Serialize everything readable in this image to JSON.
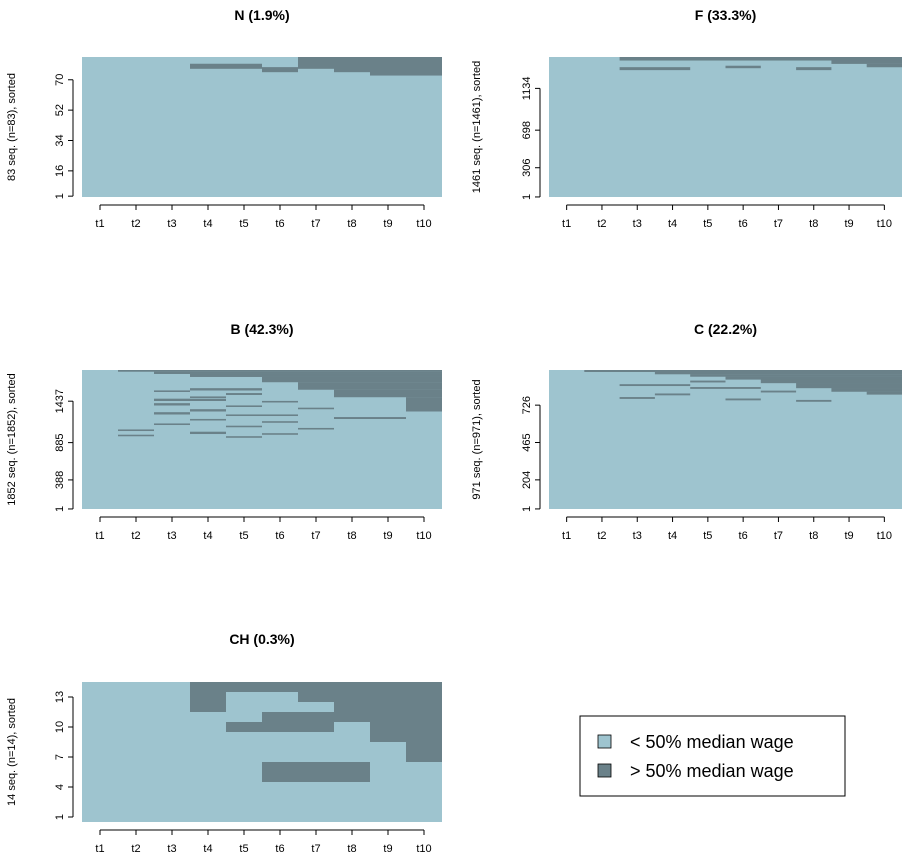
{
  "colors": {
    "below": "#9ec4cf",
    "above": "#6a8189"
  },
  "legend": {
    "items": [
      "< 50% median wage",
      "> 50% median wage"
    ]
  },
  "chart_data": [
    {
      "type": "heatmap",
      "title": "N (1.9%)",
      "ylabel": "83 seq. (n=83), sorted",
      "n": 83,
      "yticks": [
        "1",
        "16",
        "34",
        "52",
        "70"
      ],
      "ytick_values": [
        1,
        16,
        34,
        52,
        70
      ],
      "xticks": [
        "t1",
        "t2",
        "t3",
        "t4",
        "t5",
        "t6",
        "t7",
        "t8",
        "t9",
        "t10"
      ],
      "states": [
        "< 50% median wage",
        "> 50% median wage"
      ],
      "above_segments": [
        [
          79,
          83,
          7,
          10
        ],
        [
          77,
          79,
          7,
          10
        ],
        [
          75,
          77,
          8,
          10
        ],
        [
          73,
          75,
          9,
          10
        ],
        [
          81,
          83,
          10,
          10
        ],
        [
          77,
          79,
          4,
          4
        ],
        [
          77,
          79,
          5,
          5
        ],
        [
          75,
          77,
          6,
          6
        ]
      ]
    },
    {
      "type": "heatmap",
      "title": "F (33.3%)",
      "ylabel": "1461 seq. (n=1461), sorted",
      "n": 1461,
      "yticks": [
        "1",
        "306",
        "698",
        "1134"
      ],
      "ytick_values": [
        1,
        306,
        698,
        1134
      ],
      "xticks": [
        "t1",
        "t2",
        "t3",
        "t4",
        "t5",
        "t6",
        "t7",
        "t8",
        "t9",
        "t10"
      ],
      "states": [
        "< 50% median wage",
        "> 50% median wage"
      ],
      "above_segments": [
        [
          1425,
          1461,
          3,
          10
        ],
        [
          1390,
          1425,
          9,
          10
        ],
        [
          1355,
          1390,
          10,
          10
        ],
        [
          1325,
          1355,
          3,
          4
        ],
        [
          1325,
          1355,
          8,
          8
        ],
        [
          1345,
          1370,
          6,
          6
        ]
      ]
    },
    {
      "type": "heatmap",
      "title": "B (42.3%)",
      "ylabel": "1852 seq. (n=1852), sorted",
      "n": 1852,
      "yticks": [
        "1",
        "388",
        "885",
        "1437"
      ],
      "ytick_values": [
        1,
        388,
        885,
        1437
      ],
      "xticks": [
        "t1",
        "t2",
        "t3",
        "t4",
        "t5",
        "t6",
        "t7",
        "t8",
        "t9",
        "t10"
      ],
      "states": [
        "< 50% median wage",
        "> 50% median wage"
      ],
      "above_segments": [
        [
          1830,
          1852,
          2,
          10
        ],
        [
          1800,
          1830,
          3,
          10
        ],
        [
          1760,
          1800,
          4,
          10
        ],
        [
          1690,
          1760,
          6,
          10
        ],
        [
          1590,
          1690,
          7,
          10
        ],
        [
          1490,
          1590,
          8,
          10
        ],
        [
          1300,
          1490,
          10,
          10
        ],
        [
          1580,
          1610,
          4,
          5
        ],
        [
          1560,
          1580,
          3,
          3
        ],
        [
          1520,
          1545,
          5,
          5
        ],
        [
          1480,
          1500,
          4,
          4
        ],
        [
          1440,
          1470,
          3,
          4
        ],
        [
          1420,
          1440,
          6,
          6
        ],
        [
          1380,
          1410,
          3,
          3
        ],
        [
          1360,
          1380,
          5,
          5
        ],
        [
          1330,
          1350,
          7,
          7
        ],
        [
          1300,
          1330,
          4,
          4
        ],
        [
          1260,
          1290,
          3,
          3
        ],
        [
          1240,
          1260,
          5,
          6
        ],
        [
          1200,
          1225,
          8,
          9
        ],
        [
          1180,
          1200,
          4,
          4
        ],
        [
          1150,
          1170,
          6,
          6
        ],
        [
          1120,
          1140,
          3,
          3
        ],
        [
          1090,
          1110,
          5,
          5
        ],
        [
          1060,
          1080,
          7,
          7
        ],
        [
          1040,
          1060,
          2,
          2
        ],
        [
          1000,
          1030,
          4,
          4
        ],
        [
          990,
          1010,
          6,
          6
        ],
        [
          970,
          990,
          2,
          2
        ],
        [
          950,
          970,
          5,
          5
        ]
      ]
    },
    {
      "type": "heatmap",
      "title": "C (22.2%)",
      "ylabel": "971 seq. (n=971), sorted",
      "n": 971,
      "yticks": [
        "1",
        "204",
        "465",
        "726"
      ],
      "ytick_values": [
        1,
        204,
        465,
        726
      ],
      "xticks": [
        "t1",
        "t2",
        "t3",
        "t4",
        "t5",
        "t6",
        "t7",
        "t8",
        "t9",
        "t10"
      ],
      "states": [
        "< 50% median wage",
        "> 50% median wage"
      ],
      "above_segments": [
        [
          958,
          971,
          2,
          10
        ],
        [
          942,
          958,
          4,
          10
        ],
        [
          925,
          942,
          5,
          10
        ],
        [
          905,
          925,
          6,
          10
        ],
        [
          880,
          905,
          7,
          10
        ],
        [
          845,
          880,
          8,
          10
        ],
        [
          820,
          845,
          9,
          10
        ],
        [
          800,
          820,
          10,
          10
        ],
        [
          885,
          897,
          5,
          5
        ],
        [
          860,
          872,
          3,
          4
        ],
        [
          840,
          852,
          5,
          6
        ],
        [
          815,
          827,
          7,
          7
        ],
        [
          795,
          807,
          4,
          4
        ],
        [
          770,
          782,
          3,
          3
        ],
        [
          760,
          772,
          6,
          6
        ],
        [
          750,
          762,
          8,
          8
        ]
      ]
    },
    {
      "type": "heatmap",
      "title": "CH (0.3%)",
      "ylabel": "14 seq. (n=14), sorted",
      "n": 14,
      "yticks": [
        "1",
        "4",
        "7",
        "10",
        "13"
      ],
      "ytick_values": [
        1,
        4,
        7,
        10,
        13
      ],
      "xticks": [
        "t1",
        "t2",
        "t3",
        "t4",
        "t5",
        "t6",
        "t7",
        "t8",
        "t9",
        "t10"
      ],
      "states": [
        "< 50% median wage",
        "> 50% median wage"
      ],
      "above_segments": [
        [
          14,
          14,
          4,
          10
        ],
        [
          13,
          13,
          4,
          4
        ],
        [
          13,
          13,
          7,
          10
        ],
        [
          12,
          12,
          4,
          4
        ],
        [
          12,
          12,
          8,
          10
        ],
        [
          11,
          11,
          6,
          10
        ],
        [
          10,
          10,
          5,
          7
        ],
        [
          10,
          10,
          9,
          10
        ],
        [
          9,
          9,
          9,
          10
        ],
        [
          8,
          8,
          10,
          10
        ],
        [
          7,
          7,
          10,
          10
        ],
        [
          6,
          6,
          6,
          8
        ],
        [
          5,
          5,
          6,
          8
        ]
      ]
    }
  ]
}
